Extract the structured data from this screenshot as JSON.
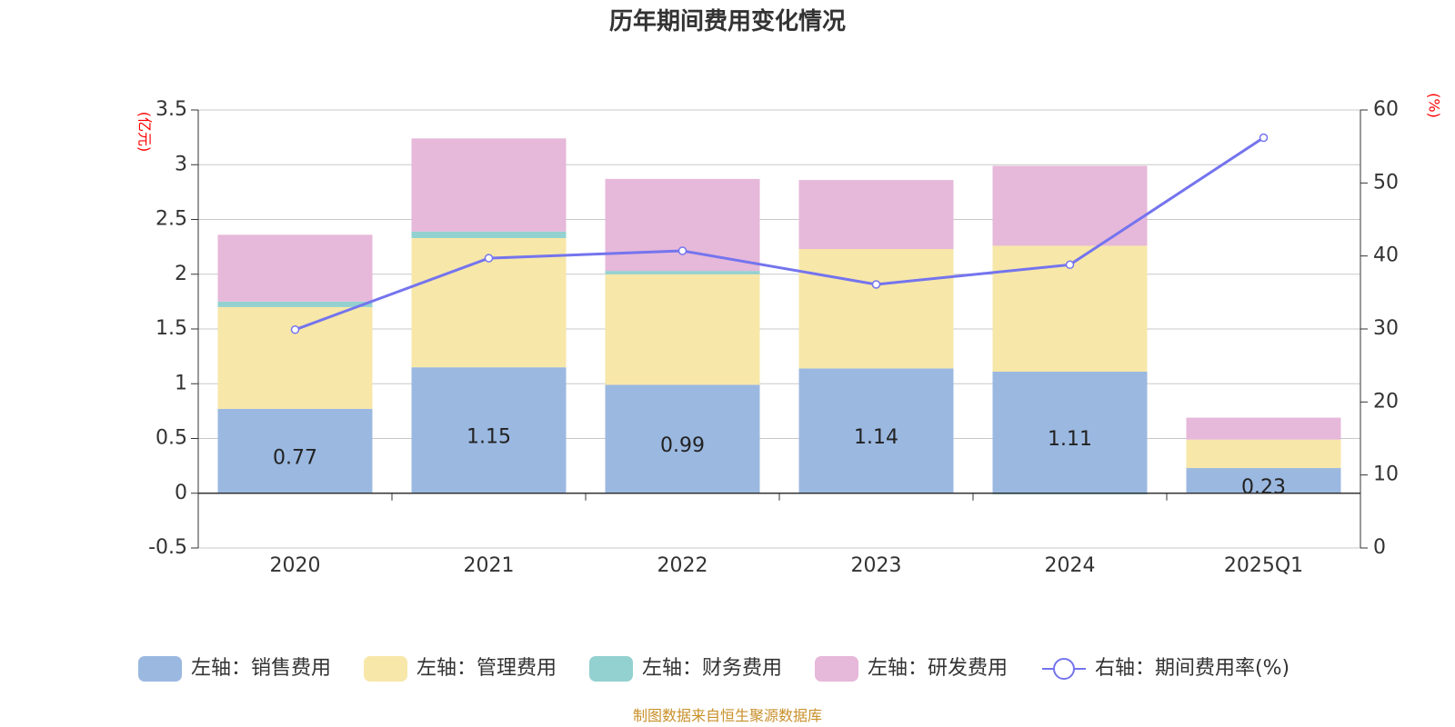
{
  "chart_data": {
    "type": "bar",
    "stacked": true,
    "title": "历年期间费用变化情况",
    "categories": [
      "2020",
      "2021",
      "2022",
      "2023",
      "2024",
      "2025Q1"
    ],
    "left_axis": {
      "unit": "(亿元)",
      "ylim": [
        -0.5,
        3.5
      ],
      "ticks": [
        "-0.5",
        "0",
        "0.5",
        "1",
        "1.5",
        "2",
        "2.5",
        "3",
        "3.5"
      ]
    },
    "right_axis": {
      "unit": "(%)",
      "ylim": [
        0,
        60
      ],
      "ticks": [
        "0",
        "10",
        "20",
        "30",
        "40",
        "50",
        "60"
      ]
    },
    "series": [
      {
        "name": "左轴：销售费用",
        "axis": "left",
        "color": "#9bb8e0",
        "values": [
          0.77,
          1.15,
          0.99,
          1.14,
          1.11,
          0.23
        ],
        "labels": [
          "0.77",
          "1.15",
          "0.99",
          "1.14",
          "1.11",
          "0.23"
        ]
      },
      {
        "name": "左轴：管理费用",
        "axis": "left",
        "color": "#f7e7a9",
        "values": [
          0.93,
          1.18,
          1.01,
          1.09,
          1.15,
          0.26
        ]
      },
      {
        "name": "左轴：财务费用",
        "axis": "left",
        "color": "#93d1d0",
        "values": [
          0.05,
          0.06,
          0.03,
          0.0,
          -0.01,
          0.0
        ]
      },
      {
        "name": "左轴：研发费用",
        "axis": "left",
        "color": "#e6b8d9",
        "values": [
          0.61,
          0.85,
          0.84,
          0.63,
          0.73,
          0.2
        ]
      },
      {
        "name": "右轴：期间费用率(%)",
        "axis": "right",
        "type": "line",
        "color": "#7474ee",
        "values": [
          29.9,
          39.7,
          40.7,
          36.1,
          38.8,
          56.2
        ]
      }
    ],
    "source": "制图数据来自恒生聚源数据库"
  }
}
